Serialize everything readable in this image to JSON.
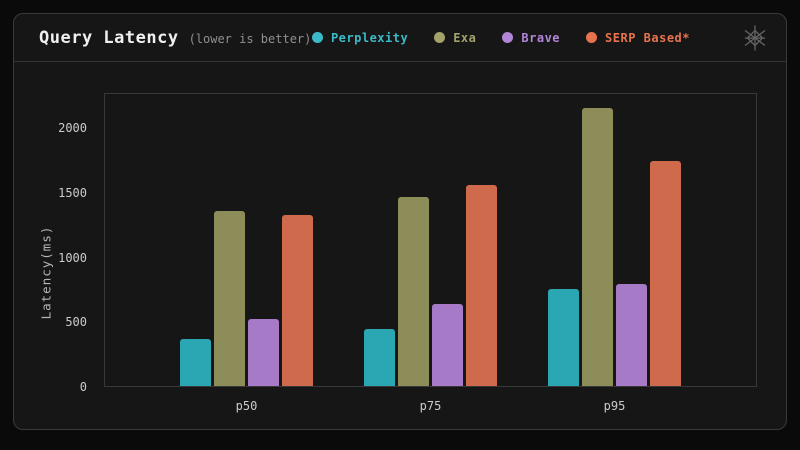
{
  "header": {
    "title": "Query Latency",
    "subtitle": "(lower is better)",
    "logo_icon": "exa-asterisk-logo"
  },
  "chart_data": {
    "type": "bar",
    "title": "Query Latency (lower is better)",
    "categories": [
      "p50",
      "p75",
      "p95"
    ],
    "series": [
      {
        "name": "Perplexity",
        "color": "#2aa7b3",
        "label_color": "#3cbac8",
        "values": [
          360,
          440,
          750
        ]
      },
      {
        "name": "Exa",
        "color": "#8d8d59",
        "label_color": "#a2a26a",
        "values": [
          1350,
          1460,
          2150
        ]
      },
      {
        "name": "Brave",
        "color": "#a67ac6",
        "label_color": "#b286d6",
        "values": [
          520,
          630,
          790
        ]
      },
      {
        "name": "SERP Based*",
        "color": "#cf6a4c",
        "label_color": "#e6734e",
        "values": [
          1320,
          1550,
          1740
        ]
      }
    ],
    "xlabel": "",
    "ylabel": "Latency(ms)",
    "ylim": [
      0,
      2270
    ],
    "yticks": [
      0,
      500,
      1000,
      1500,
      2000
    ],
    "grid": false,
    "legend_position": "top-right",
    "background": "#161616"
  }
}
